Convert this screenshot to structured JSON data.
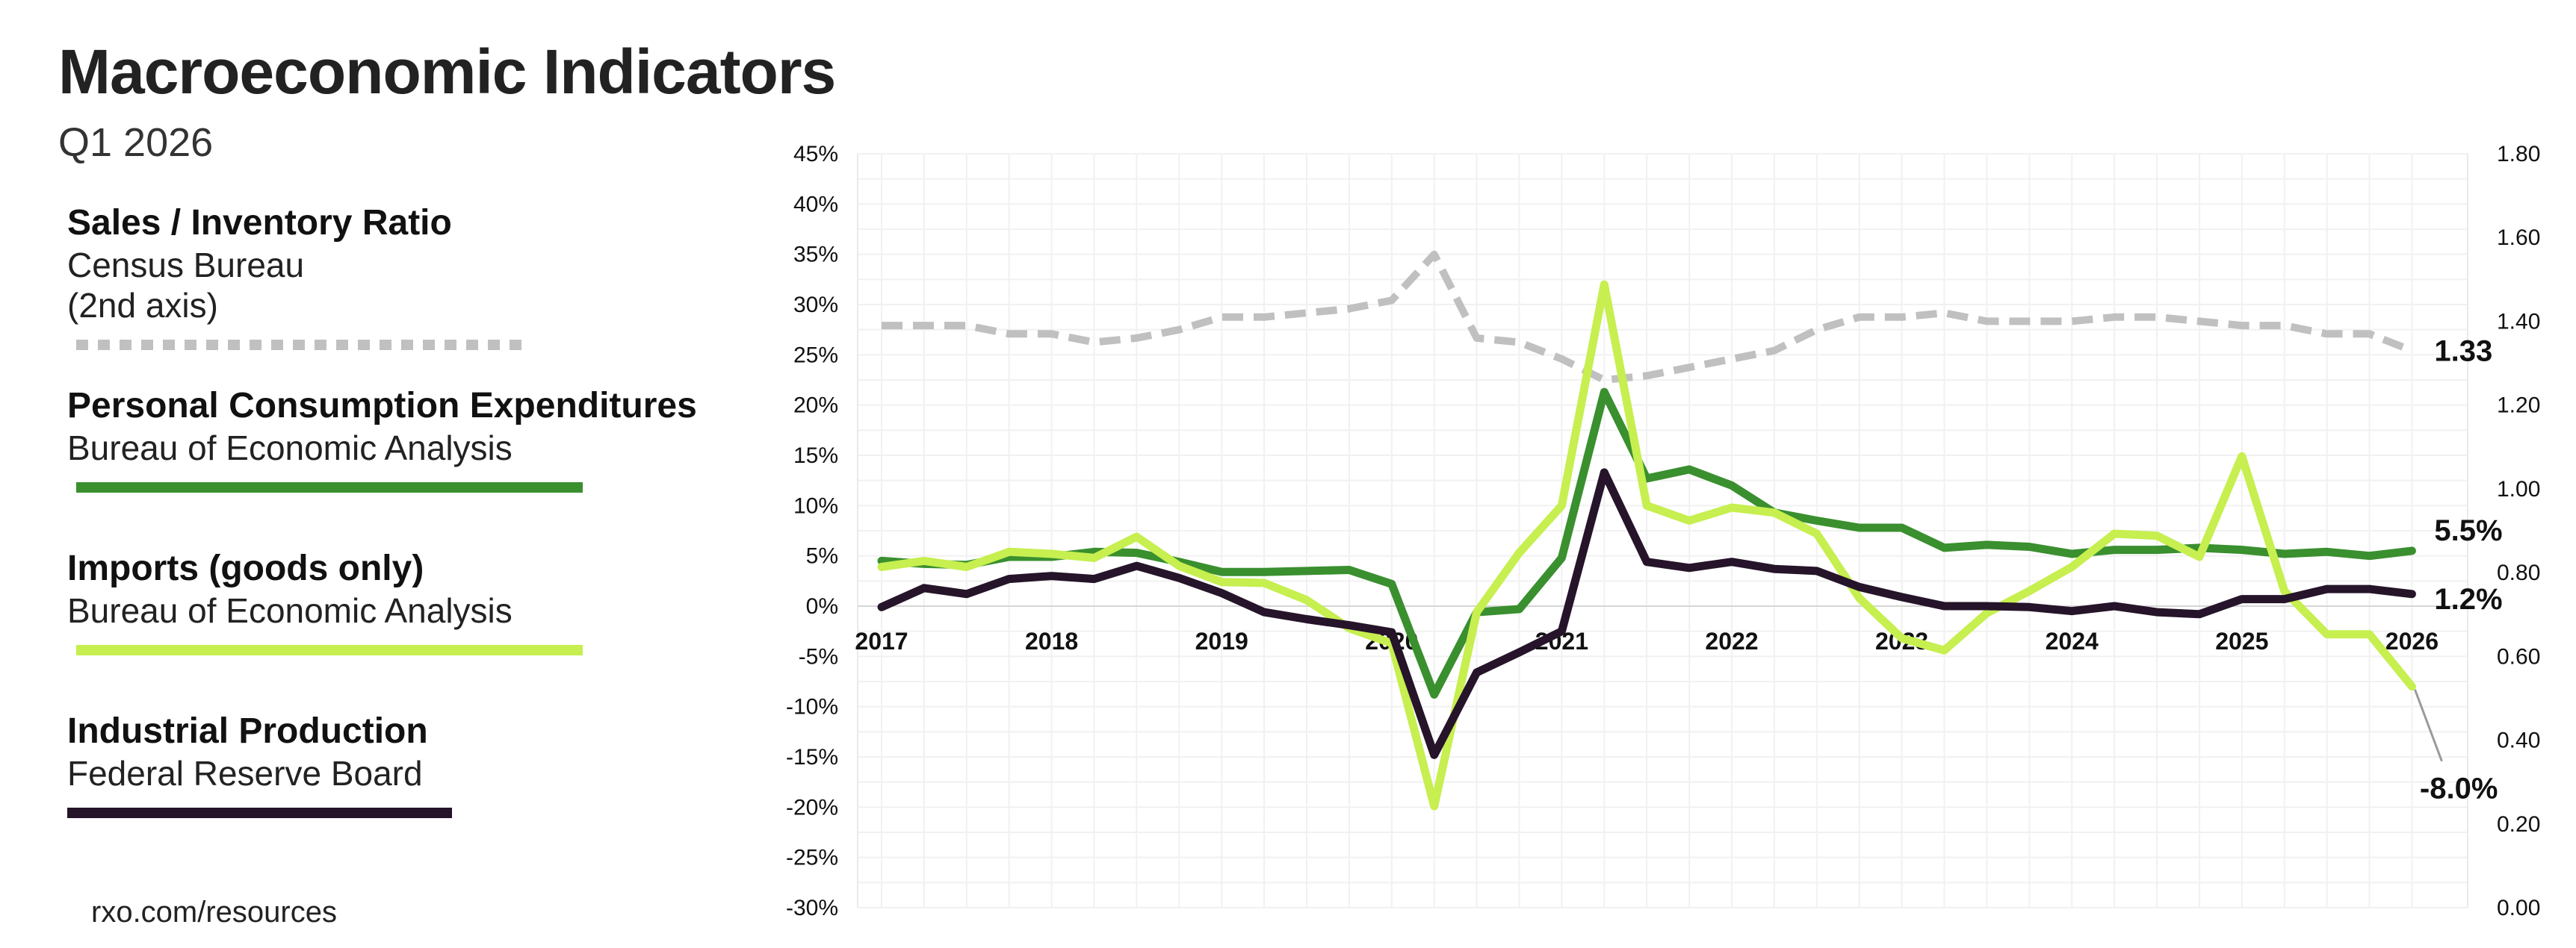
{
  "header": {
    "title": "Macroeconomic Indicators",
    "subtitle": "Q1 2026"
  },
  "legend": [
    {
      "name": "Sales / Inventory Ratio",
      "source": "Census Bureau",
      "note": "(2nd axis)",
      "color": "#c0c0c0",
      "style": "dotted"
    },
    {
      "name": "Personal Consumption Expenditures",
      "source": "Bureau of Economic Analysis",
      "color": "#3a8f2f",
      "style": "solid"
    },
    {
      "name": "Imports (goods only)",
      "source": "Bureau of Economic Analysis",
      "color": "#c6ef4f",
      "style": "solid"
    },
    {
      "name": "Industrial Production",
      "source": "Federal Reserve Board",
      "color": "#26142a",
      "style": "solid"
    }
  ],
  "footer": {
    "url": "rxo.com/resources"
  },
  "chart_data": {
    "type": "line",
    "x_labels": [
      "2017",
      "2018",
      "2019",
      "2020",
      "2021",
      "2022",
      "2023",
      "2024",
      "2025",
      "2026"
    ],
    "x": [
      "2017 Q1",
      "2017 Q2",
      "2017 Q3",
      "2017 Q4",
      "2018 Q1",
      "2018 Q2",
      "2018 Q3",
      "2018 Q4",
      "2019 Q1",
      "2019 Q2",
      "2019 Q3",
      "2019 Q4",
      "2020 Q1",
      "2020 Q2",
      "2020 Q3",
      "2020 Q4",
      "2021 Q1",
      "2021 Q2",
      "2021 Q3",
      "2021 Q4",
      "2022 Q1",
      "2022 Q2",
      "2022 Q3",
      "2022 Q4",
      "2023 Q1",
      "2023 Q2",
      "2023 Q3",
      "2023 Q4",
      "2024 Q1",
      "2024 Q2",
      "2024 Q3",
      "2024 Q4",
      "2025 Q1",
      "2025 Q2",
      "2025 Q3",
      "2025 Q4",
      "2026 Q1"
    ],
    "ylim": [
      -30,
      45
    ],
    "y_ticks": [
      "45%",
      "40%",
      "35%",
      "30%",
      "25%",
      "20%",
      "15%",
      "10%",
      "5%",
      "0%",
      "-5%",
      "-10%",
      "-15%",
      "-20%",
      "-25%",
      "-30%"
    ],
    "y2lim": [
      0.0,
      1.8
    ],
    "y2_ticks": [
      "1.80",
      "1.60",
      "1.40",
      "1.20",
      "1.00",
      "0.80",
      "0.60",
      "0.40",
      "0.20",
      "0.00"
    ],
    "grid": true,
    "series": [
      {
        "name": "Sales / Inventory Ratio",
        "axis": "right",
        "color": "#c0c0c0",
        "style": "dashed",
        "values": [
          1.39,
          1.39,
          1.39,
          1.37,
          1.37,
          1.35,
          1.36,
          1.38,
          1.41,
          1.41,
          1.42,
          1.43,
          1.45,
          1.56,
          1.36,
          1.35,
          1.31,
          1.26,
          1.27,
          1.29,
          1.31,
          1.33,
          1.38,
          1.41,
          1.41,
          1.42,
          1.4,
          1.4,
          1.4,
          1.41,
          1.41,
          1.4,
          1.39,
          1.39,
          1.37,
          1.37,
          1.33
        ],
        "end_label": "1.33"
      },
      {
        "name": "Personal Consumption Expenditures",
        "axis": "left",
        "color": "#3a8f2f",
        "style": "solid",
        "values": [
          4.5,
          4.2,
          4.1,
          4.9,
          4.9,
          5.4,
          5.3,
          4.4,
          3.4,
          3.4,
          3.5,
          3.6,
          2.2,
          -8.8,
          -0.6,
          -0.3,
          4.8,
          21.3,
          12.7,
          13.6,
          12.0,
          9.3,
          8.5,
          7.8,
          7.8,
          5.8,
          6.1,
          5.9,
          5.2,
          5.6,
          5.6,
          5.8,
          5.6,
          5.2,
          5.4,
          5.0,
          5.5
        ],
        "end_label": "5.5%"
      },
      {
        "name": "Imports (goods only)",
        "axis": "left",
        "color": "#c6ef4f",
        "style": "solid",
        "values": [
          3.9,
          4.5,
          3.9,
          5.4,
          5.2,
          4.8,
          6.9,
          4.0,
          2.4,
          2.3,
          0.6,
          -2.2,
          -3.7,
          -19.9,
          -0.6,
          5.3,
          10.0,
          32.0,
          10.0,
          8.5,
          9.8,
          9.3,
          7.2,
          0.8,
          -3.2,
          -4.4,
          -0.7,
          1.5,
          3.9,
          7.2,
          7.0,
          4.9,
          14.9,
          1.5,
          -2.8,
          -2.8,
          -8.0
        ],
        "end_label": "-8.0%"
      },
      {
        "name": "Industrial Production",
        "axis": "left",
        "color": "#26142a",
        "style": "solid",
        "values": [
          -0.1,
          1.8,
          1.2,
          2.7,
          3.0,
          2.7,
          4.0,
          2.8,
          1.3,
          -0.6,
          -1.3,
          -1.9,
          -2.6,
          -14.8,
          -6.6,
          -4.6,
          -2.5,
          13.3,
          4.4,
          3.8,
          4.4,
          3.7,
          3.5,
          1.9,
          0.9,
          0.0,
          0.0,
          -0.1,
          -0.5,
          0.0,
          -0.6,
          -0.8,
          0.7,
          0.7,
          1.7,
          1.7,
          1.2
        ],
        "end_label": "1.2%"
      }
    ]
  }
}
